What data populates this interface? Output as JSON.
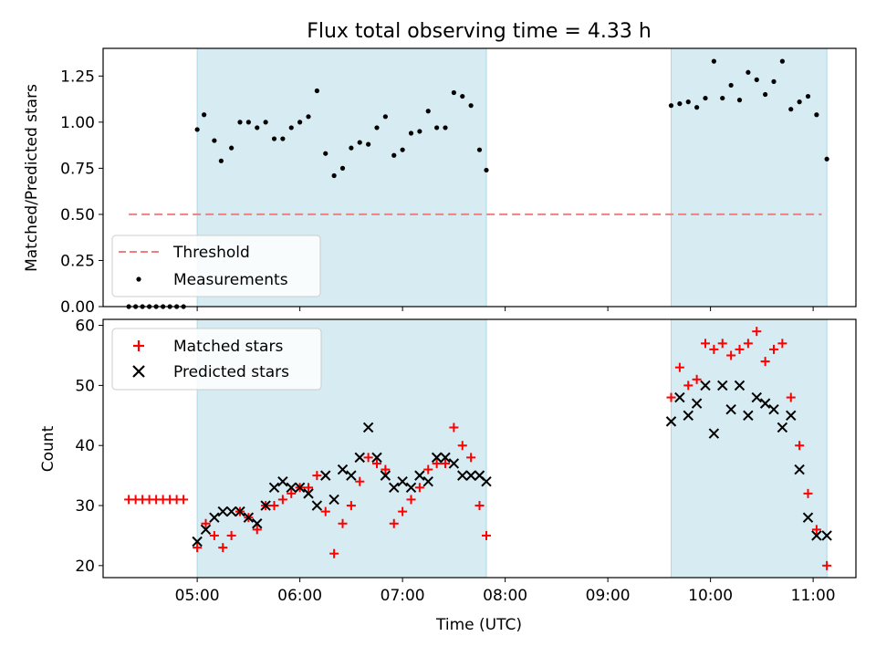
{
  "chart_data": [
    {
      "type": "scatter",
      "title": "Flux total observing time = 4.33 h",
      "xlabel": "",
      "ylabel": "Matched/Predicted stars",
      "ylim": [
        0,
        1.4
      ],
      "yticks": [
        "0.00",
        "0.25",
        "0.50",
        "0.75",
        "1.00",
        "1.25"
      ],
      "ytick_values": [
        0,
        0.25,
        0.5,
        0.75,
        1.0,
        1.25
      ],
      "xlim": [
        "04:05",
        "11:25"
      ],
      "shaded_intervals": [
        [
          "05:00",
          "07:49"
        ],
        [
          "09:37",
          "11:08"
        ]
      ],
      "threshold": {
        "name": "Threshold",
        "value": 0.5,
        "x_start": "04:20",
        "x_end": "11:05",
        "color": "#f08080"
      },
      "legend": {
        "location": "lower left",
        "entries": [
          "Threshold",
          "Measurements"
        ]
      },
      "series": [
        {
          "name": "Measurements",
          "color": "#000000",
          "points": [
            [
              "04:20",
              0
            ],
            [
              "04:24",
              0
            ],
            [
              "04:28",
              0
            ],
            [
              "04:32",
              0
            ],
            [
              "04:36",
              0
            ],
            [
              "04:40",
              0
            ],
            [
              "04:44",
              0
            ],
            [
              "04:48",
              0
            ],
            [
              "04:52",
              0
            ],
            [
              "05:00",
              0.96
            ],
            [
              "05:04",
              1.04
            ],
            [
              "05:10",
              0.9
            ],
            [
              "05:14",
              0.79
            ],
            [
              "05:20",
              0.86
            ],
            [
              "05:25",
              1.0
            ],
            [
              "05:30",
              1.0
            ],
            [
              "05:35",
              0.97
            ],
            [
              "05:40",
              1.0
            ],
            [
              "05:45",
              0.91
            ],
            [
              "05:50",
              0.91
            ],
            [
              "05:55",
              0.97
            ],
            [
              "06:00",
              1.0
            ],
            [
              "06:05",
              1.03
            ],
            [
              "06:10",
              1.17
            ],
            [
              "06:15",
              0.83
            ],
            [
              "06:20",
              0.71
            ],
            [
              "06:25",
              0.75
            ],
            [
              "06:30",
              0.86
            ],
            [
              "06:35",
              0.89
            ],
            [
              "06:40",
              0.88
            ],
            [
              "06:45",
              0.97
            ],
            [
              "06:50",
              1.03
            ],
            [
              "06:55",
              0.82
            ],
            [
              "07:00",
              0.85
            ],
            [
              "07:05",
              0.94
            ],
            [
              "07:10",
              0.95
            ],
            [
              "07:15",
              1.06
            ],
            [
              "07:20",
              0.97
            ],
            [
              "07:25",
              0.97
            ],
            [
              "07:30",
              1.16
            ],
            [
              "07:35",
              1.14
            ],
            [
              "07:40",
              1.09
            ],
            [
              "07:45",
              0.85
            ],
            [
              "07:49",
              0.74
            ],
            [
              "09:37",
              1.09
            ],
            [
              "09:42",
              1.1
            ],
            [
              "09:47",
              1.11
            ],
            [
              "09:52",
              1.08
            ],
            [
              "09:57",
              1.13
            ],
            [
              "10:02",
              1.33
            ],
            [
              "10:07",
              1.13
            ],
            [
              "10:12",
              1.2
            ],
            [
              "10:17",
              1.12
            ],
            [
              "10:22",
              1.27
            ],
            [
              "10:27",
              1.23
            ],
            [
              "10:32",
              1.15
            ],
            [
              "10:37",
              1.22
            ],
            [
              "10:42",
              1.33
            ],
            [
              "10:47",
              1.07
            ],
            [
              "10:52",
              1.11
            ],
            [
              "10:57",
              1.14
            ],
            [
              "11:02",
              1.04
            ],
            [
              "11:08",
              0.8
            ]
          ]
        }
      ]
    },
    {
      "type": "scatter",
      "title": "",
      "xlabel": "Time (UTC)",
      "ylabel": "Count",
      "ylim": [
        18,
        61
      ],
      "yticks": [
        "20",
        "30",
        "40",
        "50",
        "60"
      ],
      "ytick_values": [
        20,
        30,
        40,
        50,
        60
      ],
      "xlim": [
        "04:05",
        "11:25"
      ],
      "xticks": [
        "05:00",
        "06:00",
        "07:00",
        "08:00",
        "09:00",
        "10:00",
        "11:00"
      ],
      "shaded_intervals": [
        [
          "05:00",
          "07:49"
        ],
        [
          "09:37",
          "11:08"
        ]
      ],
      "legend": {
        "location": "upper left",
        "entries": [
          "Matched stars",
          "Predicted stars"
        ]
      },
      "series": [
        {
          "name": "Matched stars",
          "marker": "plus",
          "color": "#ff0000",
          "points": [
            [
              "04:20",
              31
            ],
            [
              "04:24",
              31
            ],
            [
              "04:28",
              31
            ],
            [
              "04:32",
              31
            ],
            [
              "04:36",
              31
            ],
            [
              "04:40",
              31
            ],
            [
              "04:44",
              31
            ],
            [
              "04:48",
              31
            ],
            [
              "04:52",
              31
            ],
            [
              "05:00",
              23
            ],
            [
              "05:05",
              27
            ],
            [
              "05:10",
              25
            ],
            [
              "05:15",
              23
            ],
            [
              "05:20",
              25
            ],
            [
              "05:25",
              29
            ],
            [
              "05:30",
              28
            ],
            [
              "05:35",
              26
            ],
            [
              "05:40",
              30
            ],
            [
              "05:45",
              30
            ],
            [
              "05:50",
              31
            ],
            [
              "05:55",
              32
            ],
            [
              "06:00",
              33
            ],
            [
              "06:05",
              33
            ],
            [
              "06:10",
              35
            ],
            [
              "06:15",
              29
            ],
            [
              "06:20",
              22
            ],
            [
              "06:25",
              27
            ],
            [
              "06:30",
              30
            ],
            [
              "06:35",
              34
            ],
            [
              "06:40",
              38
            ],
            [
              "06:45",
              37
            ],
            [
              "06:50",
              36
            ],
            [
              "06:55",
              27
            ],
            [
              "07:00",
              29
            ],
            [
              "07:05",
              31
            ],
            [
              "07:10",
              33
            ],
            [
              "07:15",
              36
            ],
            [
              "07:20",
              37
            ],
            [
              "07:25",
              37
            ],
            [
              "07:30",
              43
            ],
            [
              "07:35",
              40
            ],
            [
              "07:40",
              38
            ],
            [
              "07:45",
              30
            ],
            [
              "07:49",
              25
            ],
            [
              "09:37",
              48
            ],
            [
              "09:42",
              53
            ],
            [
              "09:47",
              50
            ],
            [
              "09:52",
              51
            ],
            [
              "09:57",
              57
            ],
            [
              "10:02",
              56
            ],
            [
              "10:07",
              57
            ],
            [
              "10:12",
              55
            ],
            [
              "10:17",
              56
            ],
            [
              "10:22",
              57
            ],
            [
              "10:27",
              59
            ],
            [
              "10:32",
              54
            ],
            [
              "10:37",
              56
            ],
            [
              "10:42",
              57
            ],
            [
              "10:47",
              48
            ],
            [
              "10:52",
              40
            ],
            [
              "10:57",
              32
            ],
            [
              "11:02",
              26
            ],
            [
              "11:08",
              20
            ]
          ]
        },
        {
          "name": "Predicted stars",
          "marker": "x",
          "color": "#000000",
          "points": [
            [
              "05:00",
              24
            ],
            [
              "05:05",
              26
            ],
            [
              "05:10",
              28
            ],
            [
              "05:15",
              29
            ],
            [
              "05:20",
              29
            ],
            [
              "05:25",
              29
            ],
            [
              "05:30",
              28
            ],
            [
              "05:35",
              27
            ],
            [
              "05:40",
              30
            ],
            [
              "05:45",
              33
            ],
            [
              "05:50",
              34
            ],
            [
              "05:55",
              33
            ],
            [
              "06:00",
              33
            ],
            [
              "06:05",
              32
            ],
            [
              "06:10",
              30
            ],
            [
              "06:15",
              35
            ],
            [
              "06:20",
              31
            ],
            [
              "06:25",
              36
            ],
            [
              "06:30",
              35
            ],
            [
              "06:35",
              38
            ],
            [
              "06:40",
              43
            ],
            [
              "06:45",
              38
            ],
            [
              "06:50",
              35
            ],
            [
              "06:55",
              33
            ],
            [
              "07:00",
              34
            ],
            [
              "07:05",
              33
            ],
            [
              "07:10",
              35
            ],
            [
              "07:15",
              34
            ],
            [
              "07:20",
              38
            ],
            [
              "07:25",
              38
            ],
            [
              "07:30",
              37
            ],
            [
              "07:35",
              35
            ],
            [
              "07:40",
              35
            ],
            [
              "07:45",
              35
            ],
            [
              "07:49",
              34
            ],
            [
              "09:37",
              44
            ],
            [
              "09:42",
              48
            ],
            [
              "09:47",
              45
            ],
            [
              "09:52",
              47
            ],
            [
              "09:57",
              50
            ],
            [
              "10:02",
              42
            ],
            [
              "10:07",
              50
            ],
            [
              "10:12",
              46
            ],
            [
              "10:17",
              50
            ],
            [
              "10:22",
              45
            ],
            [
              "10:27",
              48
            ],
            [
              "10:32",
              47
            ],
            [
              "10:37",
              46
            ],
            [
              "10:42",
              43
            ],
            [
              "10:47",
              45
            ],
            [
              "10:52",
              36
            ],
            [
              "10:57",
              28
            ],
            [
              "11:02",
              25
            ],
            [
              "11:08",
              25
            ]
          ]
        }
      ]
    }
  ],
  "colors": {
    "shade": "#add8e6",
    "threshold": "#f08080",
    "matched": "#ff0000",
    "predicted": "#000000"
  }
}
